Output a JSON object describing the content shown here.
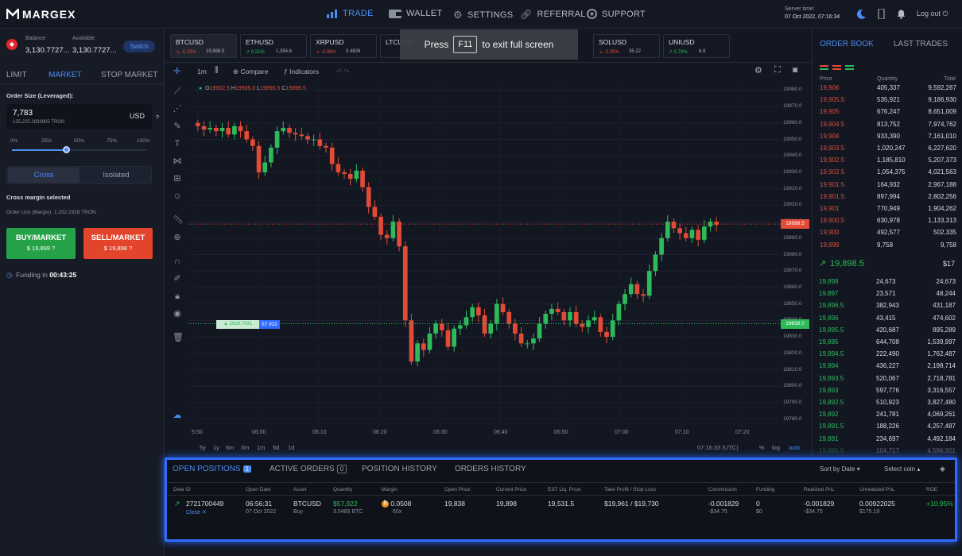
{
  "header": {
    "logo": "MARGEX",
    "nav": [
      "TRADE",
      "WALLET",
      "SETTINGS",
      "REFERRAL",
      "SUPPORT"
    ],
    "server_label": "Server time:",
    "server_time": "07 Oct 2022, 07:16:34",
    "logout": "Log out"
  },
  "account": {
    "balance_label": "Balance",
    "balance": "3,130.7727...",
    "available_label": "Available",
    "available": "3,130.7727...",
    "switch": "Switch"
  },
  "order": {
    "tabs": [
      "LIMIT",
      "MARKET",
      "STOP MARKET"
    ],
    "size_label": "Order Size (Leveraged):",
    "size_value": "7,783",
    "size_sub": "125,225.2839905 TRON",
    "currency": "USD",
    "slider_ticks": [
      "0%",
      "25%",
      "50%",
      "75%",
      "100%"
    ],
    "slider_value": 0.4,
    "margin_tabs": [
      "Cross",
      "Isolated"
    ],
    "cross_note": "Cross margin selected",
    "cost": "Order cost (Margin): 1,252.2928 TRON",
    "buy_label": "BUY/MARKET",
    "buy_price": "$ 19,899",
    "sell_label": "SELL/MARKET",
    "sell_price": "$ 19,898",
    "funding_label": "Funding in",
    "funding_time": "00:43:25"
  },
  "tickers": [
    {
      "name": "BTCUSD",
      "chg": "-0.23%",
      "price": "19,898.5",
      "up": false
    },
    {
      "name": "ETHUSD",
      "chg": "0.21%",
      "price": "1,354.6",
      "up": true
    },
    {
      "name": "XRPUSD",
      "chg": "-0.98%",
      "price": "0.4826",
      "up": false
    },
    {
      "name": "LTCUSD",
      "chg": "",
      "price": "",
      "up": false
    },
    {
      "name": "SOLUSD",
      "chg": "-0.09%",
      "price": "35.22",
      "up": false
    },
    {
      "name": "UNIUSD",
      "chg": "0.73%",
      "price": "6.9",
      "up": true
    }
  ],
  "fullscreen": {
    "press": "Press",
    "key": "F11",
    "rest": "to exit full screen"
  },
  "chart_toolbar": {
    "interval": "1m",
    "compare": "Compare",
    "indicators": "Indicators",
    "ohlc": {
      "o": "19902.5",
      "h": "19905.0",
      "l": "19896.5",
      "c": "19898.5"
    }
  },
  "chart_data": {
    "type": "candlestick",
    "title": "BTCUSD",
    "y_ticks": [
      "19980.0",
      "19970.0",
      "19960.0",
      "19950.0",
      "19940.0",
      "19930.0",
      "19920.0",
      "19910.0",
      "19900.0",
      "19890.0",
      "19880.0",
      "19870.0",
      "19860.0",
      "19850.0",
      "19840.0",
      "19830.0",
      "19820.0",
      "19810.0",
      "19800.0",
      "19790.0",
      "19780.0"
    ],
    "ylim": [
      19775,
      19985
    ],
    "x_ticks": [
      "5:50",
      "06:00",
      "06:10",
      "06:20",
      "06:30",
      "06:40",
      "06:50",
      "07:00",
      "07:10",
      "07:20"
    ],
    "last_price": "19898.5",
    "position_price_label": "19838.0",
    "position_line": {
      "pnl": "▲ 2818.7431",
      "qty": "57 922"
    },
    "close": [
      19958,
      19956,
      19957,
      19955,
      19957,
      19953,
      19958,
      19955,
      19950,
      19946,
      19930,
      19936,
      19945,
      19955,
      19957,
      19954,
      19953,
      19952,
      19950,
      19950,
      19946,
      19945,
      19935,
      19930,
      19929,
      19926,
      19931,
      19921,
      19909,
      19903,
      19892,
      19890,
      19900,
      19885,
      19840,
      19815,
      19826,
      19822,
      19832,
      19838,
      19834,
      19824,
      19835,
      19837,
      19842,
      19848,
      19843,
      19832,
      19838,
      19850,
      19845,
      19838,
      19832,
      19826,
      19826,
      19829,
      19838,
      19844,
      19847,
      19845,
      19840,
      19845,
      19838,
      19836,
      19840,
      19842,
      19833,
      19830,
      19840,
      19850,
      19856,
      19862,
      19856,
      19855,
      19870,
      19880,
      19890,
      19900,
      19896,
      19893,
      19890,
      19895,
      19889,
      19897,
      19900,
      19898
    ]
  },
  "period_buttons": [
    "5y",
    "1y",
    "6m",
    "3m",
    "1m",
    "5d",
    "1d"
  ],
  "chart_footer": {
    "time": "07:16:33 (UTC)",
    "pct": "%",
    "log": "log",
    "auto": "auto"
  },
  "orderbook": {
    "tabs": [
      "ORDER BOOK",
      "LAST TRADES"
    ],
    "headers": [
      "Price",
      "Quantity",
      "Total"
    ],
    "asks": [
      [
        "19,906",
        "405,337",
        "9,592,267"
      ],
      [
        "19,905.5",
        "535,921",
        "9,186,930"
      ],
      [
        "19,905",
        "676,247",
        "8,651,009"
      ],
      [
        "19,904.5",
        "813,752",
        "7,974,762"
      ],
      [
        "19,904",
        "933,390",
        "7,161,010"
      ],
      [
        "19,903.5",
        "1,020,247",
        "6,227,620"
      ],
      [
        "19,902.5",
        "1,185,810",
        "5,207,373"
      ],
      [
        "19,902.5",
        "1,054,375",
        "4,021,563"
      ],
      [
        "19,901.5",
        "164,932",
        "2,967,188"
      ],
      [
        "19,901.5",
        "897,994",
        "2,802,256"
      ],
      [
        "19,901",
        "770,949",
        "1,904,262"
      ],
      [
        "19,900.5",
        "630,978",
        "1,133,313"
      ],
      [
        "19,900",
        "492,577",
        "502,335"
      ],
      [
        "19,899",
        "9,758",
        "9,758"
      ]
    ],
    "mid_price": "19,898.5",
    "mid_value": "$17",
    "bids": [
      [
        "19,898",
        "24,673",
        "24,673"
      ],
      [
        "19,897",
        "23,571",
        "48,244"
      ],
      [
        "19,896.5",
        "382,943",
        "431,187"
      ],
      [
        "19,896",
        "43,415",
        "474,602"
      ],
      [
        "19,895.5",
        "420,687",
        "895,289"
      ],
      [
        "19,895",
        "644,708",
        "1,539,997"
      ],
      [
        "19,894.5",
        "222,490",
        "1,762,487"
      ],
      [
        "19,894",
        "436,227",
        "2,198,714"
      ],
      [
        "19,893.5",
        "520,067",
        "2,718,781"
      ],
      [
        "19,893",
        "597,776",
        "3,316,557"
      ],
      [
        "19,892.5",
        "510,923",
        "3,827,480"
      ],
      [
        "19,892",
        "241,781",
        "4,069,261"
      ],
      [
        "19,891.5",
        "188,226",
        "4,257,487"
      ],
      [
        "19,891",
        "234,697",
        "4,492,184"
      ],
      [
        "19,890.5",
        "104,717",
        "4,596,901"
      ]
    ]
  },
  "positions": {
    "tabs": [
      {
        "label": "OPEN POSITIONS",
        "count": "1"
      },
      {
        "label": "ACTIVE ORDERS",
        "count": "0"
      },
      {
        "label": "POSITION HISTORY",
        "count": ""
      },
      {
        "label": "ORDERS HISTORY",
        "count": ""
      }
    ],
    "sort": "Sort by Date",
    "select_coin": "Select coin",
    "headers": [
      "Deal ID",
      "Open Date",
      "Asset",
      "Quantity",
      "Margin",
      "Open Price",
      "Current Price",
      "EST Liq. Price",
      "Take Profit / Stop Loss",
      "Commission",
      "Funding",
      "Realized PnL",
      "Unrealized PnL",
      "ROE"
    ],
    "row": {
      "deal_id": "2721700449",
      "close": "Close",
      "open_date": "06:56:31",
      "open_date2": "07 Oct 2022",
      "asset": "BTCUSD",
      "side": "Buy",
      "quantity": "$57,922",
      "quantity2": "3.0485 BTC",
      "margin": "0.0508",
      "leverage": "60x",
      "open_price": "19,838",
      "current_price": "19,898",
      "liq_price": "19,531.5",
      "tpsl": "$19,961 / $19,730",
      "commission": "-0.001829",
      "commission2": "-$34.75",
      "funding": "0",
      "funding2": "$0",
      "realized": "-0.001829",
      "realized2": "-$34.75",
      "unrealized": "0.00922025",
      "unrealized2": "$175.19",
      "roe": "+10.95%"
    }
  },
  "colors": {
    "up": "#2dbb5a",
    "down": "#e24b36",
    "accent": "#4a8cf0",
    "highlight": "#2f6bff"
  }
}
